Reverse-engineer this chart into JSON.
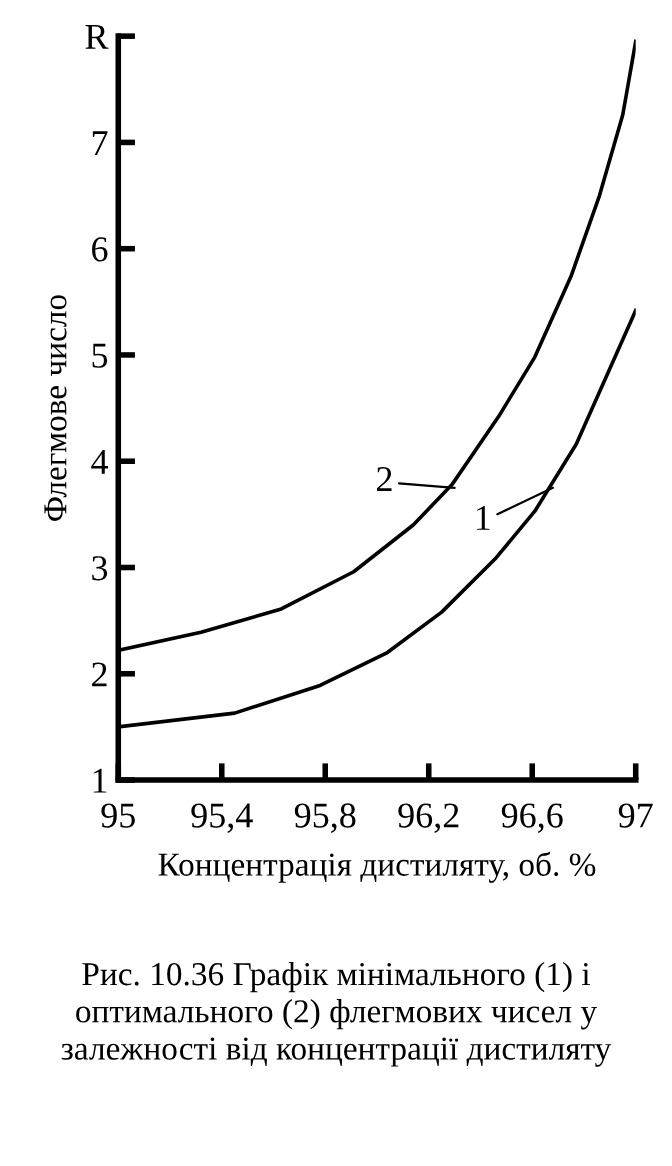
{
  "chart_data": {
    "type": "line",
    "xlabel": "Концентрація дистиляту, об. %",
    "ylabel": "Флегмове число",
    "xlim": [
      95,
      97
    ],
    "ylim": [
      1,
      8
    ],
    "xticks": [
      95,
      {
        "value": 95.4,
        "label": "95,4"
      },
      {
        "value": 95.8,
        "label": "95,8"
      },
      {
        "value": 96.2,
        "label": "96,2"
      },
      {
        "value": 96.6,
        "label": "96,6"
      },
      97
    ],
    "yticks": [
      1,
      2,
      3,
      4,
      5,
      6,
      7,
      {
        "value": 8,
        "label": "R"
      }
    ],
    "grid": false,
    "marker": "none",
    "line_style": "solid",
    "series": [
      {
        "color": "#000000",
        "x": [
          95,
          95.45,
          95.78,
          96.04,
          96.25,
          96.46,
          96.61,
          96.77,
          96.92,
          97.0
        ],
        "values": [
          1.5,
          1.63,
          1.89,
          2.2,
          2.58,
          3.09,
          3.53,
          4.16,
          4.98,
          5.42
        ]
      },
      {
        "color": "#000000",
        "x": [
          95,
          95.32,
          95.63,
          95.91,
          96.14,
          96.29,
          96.47,
          96.61,
          96.75,
          96.86,
          96.95,
          97.0
        ],
        "values": [
          2.22,
          2.39,
          2.61,
          2.96,
          3.4,
          3.78,
          4.42,
          4.98,
          5.74,
          6.5,
          7.26,
          7.95
        ]
      }
    ],
    "annotations": [
      {
        "text": "1",
        "x": 96.68,
        "y": 3.75
      },
      {
        "text": "2",
        "x": 96.3,
        "y": 3.75
      },
      "Рис. 10.36 Графік мінімального (1) і оптимального (2) флегмових чисел у залежності від концентрації дистиляту"
    ]
  }
}
